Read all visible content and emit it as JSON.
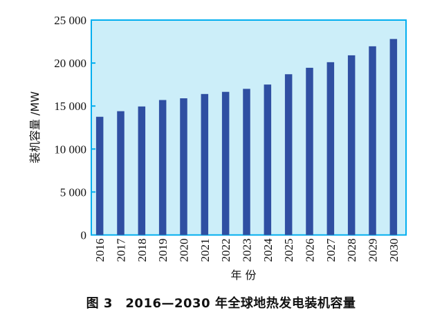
{
  "chart_data": {
    "type": "bar",
    "title": "",
    "xlabel": "年 份",
    "ylabel": "装机容量 /MW",
    "ylim": [
      0,
      25000
    ],
    "yticks": [
      0,
      5000,
      10000,
      15000,
      20000,
      25000
    ],
    "ytick_labels": [
      "0",
      "5 000",
      "10 000",
      "15 000",
      "20 000",
      "25 000"
    ],
    "categories": [
      "2016",
      "2017",
      "2018",
      "2019",
      "2020",
      "2021",
      "2022",
      "2023",
      "2024",
      "2025",
      "2026",
      "2027",
      "2028",
      "2029",
      "2030"
    ],
    "values": [
      13750,
      14400,
      14950,
      15700,
      15900,
      16400,
      16650,
      17000,
      17500,
      18700,
      19450,
      20100,
      20900,
      21950,
      22800
    ],
    "grid": false,
    "colors": {
      "bar": "#2f4fa2",
      "plot_bg": "#cceef9",
      "axis": "#00aeef"
    }
  },
  "caption": "图 3　2016—2030 年全球地热发电装机容量"
}
